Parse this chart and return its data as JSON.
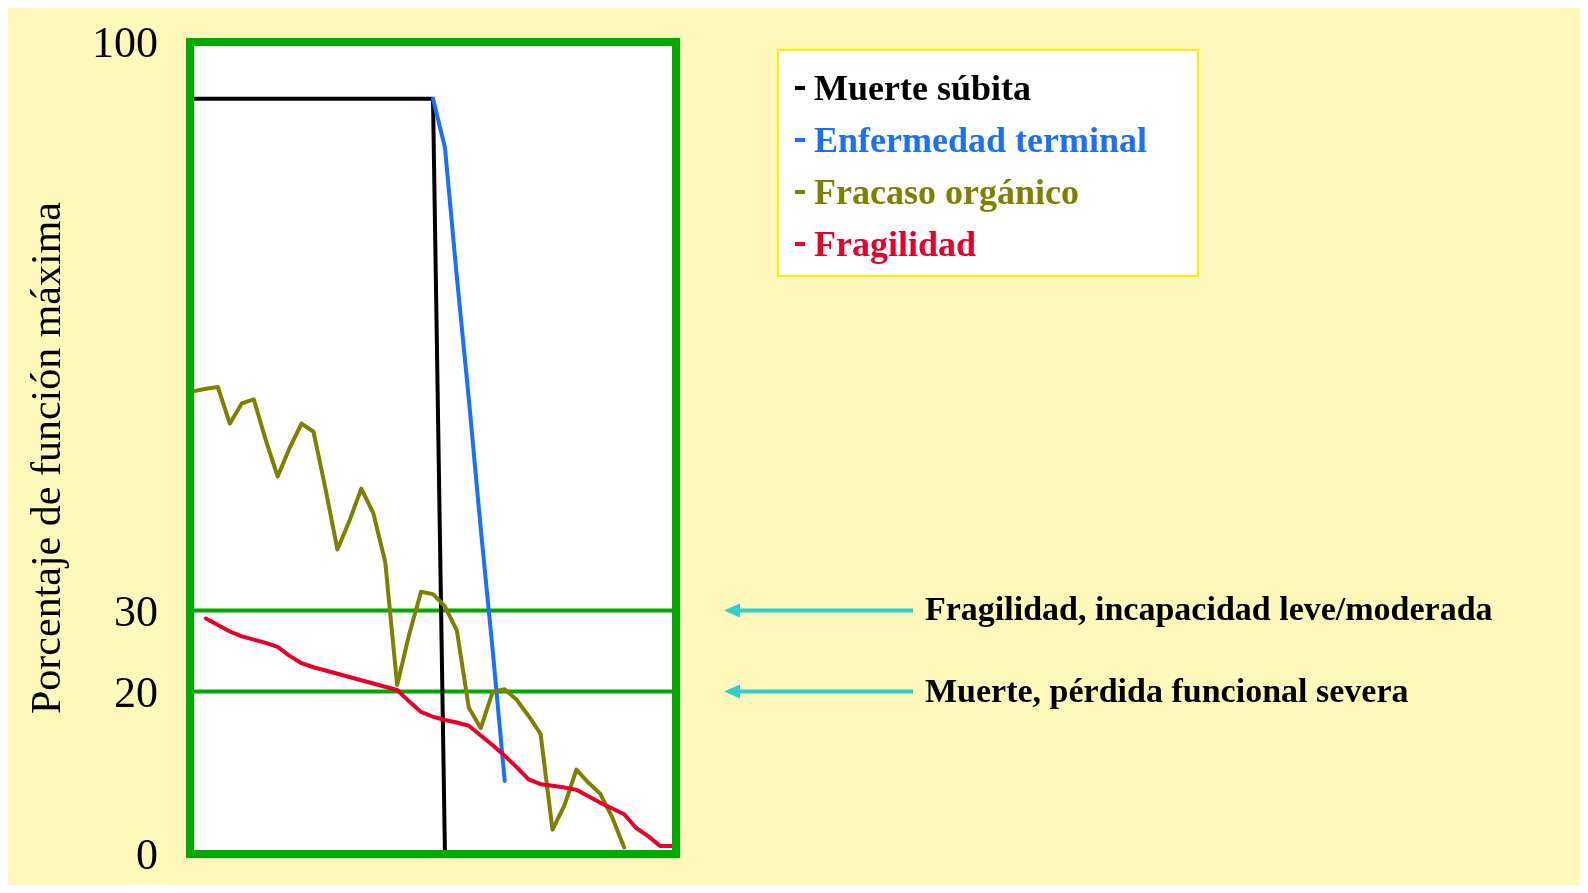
{
  "chart_data": {
    "type": "line",
    "ylabel": "Porcentaje de función máxima",
    "categories": [
      null,
      null,
      null,
      null,
      null,
      null,
      null,
      null,
      null,
      null,
      null,
      null,
      null,
      null,
      null,
      null,
      null,
      null,
      null,
      null,
      null,
      null,
      null,
      null,
      null,
      null,
      null,
      null,
      null,
      null,
      null,
      null,
      null,
      null,
      null,
      null,
      null,
      null,
      null,
      null,
      null
    ],
    "ylim": [
      0,
      100
    ],
    "yticks": [
      0,
      20,
      30,
      100
    ],
    "legend": "top right",
    "marker": "none",
    "line_style": "solid",
    "series": [
      {
        "name": "Muerte súbita",
        "color": "#000000",
        "values": [
          93,
          93,
          93,
          93,
          93,
          93,
          93,
          93,
          93,
          93,
          93,
          93,
          93,
          93,
          93,
          93,
          93,
          93,
          93,
          93,
          93,
          0,
          null,
          null,
          null,
          null,
          null,
          null,
          null,
          null,
          null,
          null,
          null,
          null,
          null,
          null,
          null,
          null,
          null,
          null,
          null
        ]
      },
      {
        "name": "Enfermedad terminal",
        "color": "#1a6fff",
        "values": [
          null,
          null,
          null,
          null,
          null,
          null,
          null,
          null,
          null,
          null,
          null,
          null,
          null,
          null,
          null,
          null,
          null,
          null,
          null,
          null,
          93,
          87,
          71,
          56,
          40,
          25,
          9,
          null,
          null,
          null,
          null,
          null,
          null,
          null,
          null,
          null,
          null,
          null,
          null,
          null,
          null
        ]
      },
      {
        "name": "Fracaso orgánico",
        "color": "#808000",
        "values": [
          57,
          57.3,
          57.5,
          53,
          55.5,
          56,
          51,
          46.5,
          50,
          53,
          52,
          45,
          37.5,
          41,
          45,
          42,
          36,
          20.8,
          27,
          32.3,
          32,
          30.5,
          27.5,
          18,
          15.5,
          20,
          20.3,
          19,
          17,
          14.8,
          3,
          6,
          10.4,
          8.8,
          7.4,
          4.5,
          0.8,
          null,
          null,
          null,
          null
        ]
      },
      {
        "name": "Fragilidad",
        "color": "#e8002a",
        "values": [
          null,
          29,
          28.2,
          27.4,
          26.8,
          26.4,
          26,
          25.5,
          24.4,
          23.5,
          23,
          22.6,
          22.2,
          21.8,
          21.4,
          21,
          20.6,
          20.2,
          18.8,
          17.5,
          16.9,
          16.5,
          16.2,
          15.8,
          14.6,
          13.4,
          12.1,
          10.7,
          9.2,
          8.6,
          8.4,
          8.2,
          7.9,
          7.1,
          6.3,
          5.6,
          4.9,
          3.2,
          2.2,
          1,
          1
        ]
      }
    ],
    "ref_lines": [
      {
        "axis": "y",
        "value": 30,
        "color": "#00aa00"
      },
      {
        "axis": "y",
        "value": 20,
        "color": "#00aa00"
      }
    ],
    "annotations": [
      "Fragilidad, incapacidad leve/moderada",
      "Muerte, pérdida funcional severa"
    ]
  }
}
